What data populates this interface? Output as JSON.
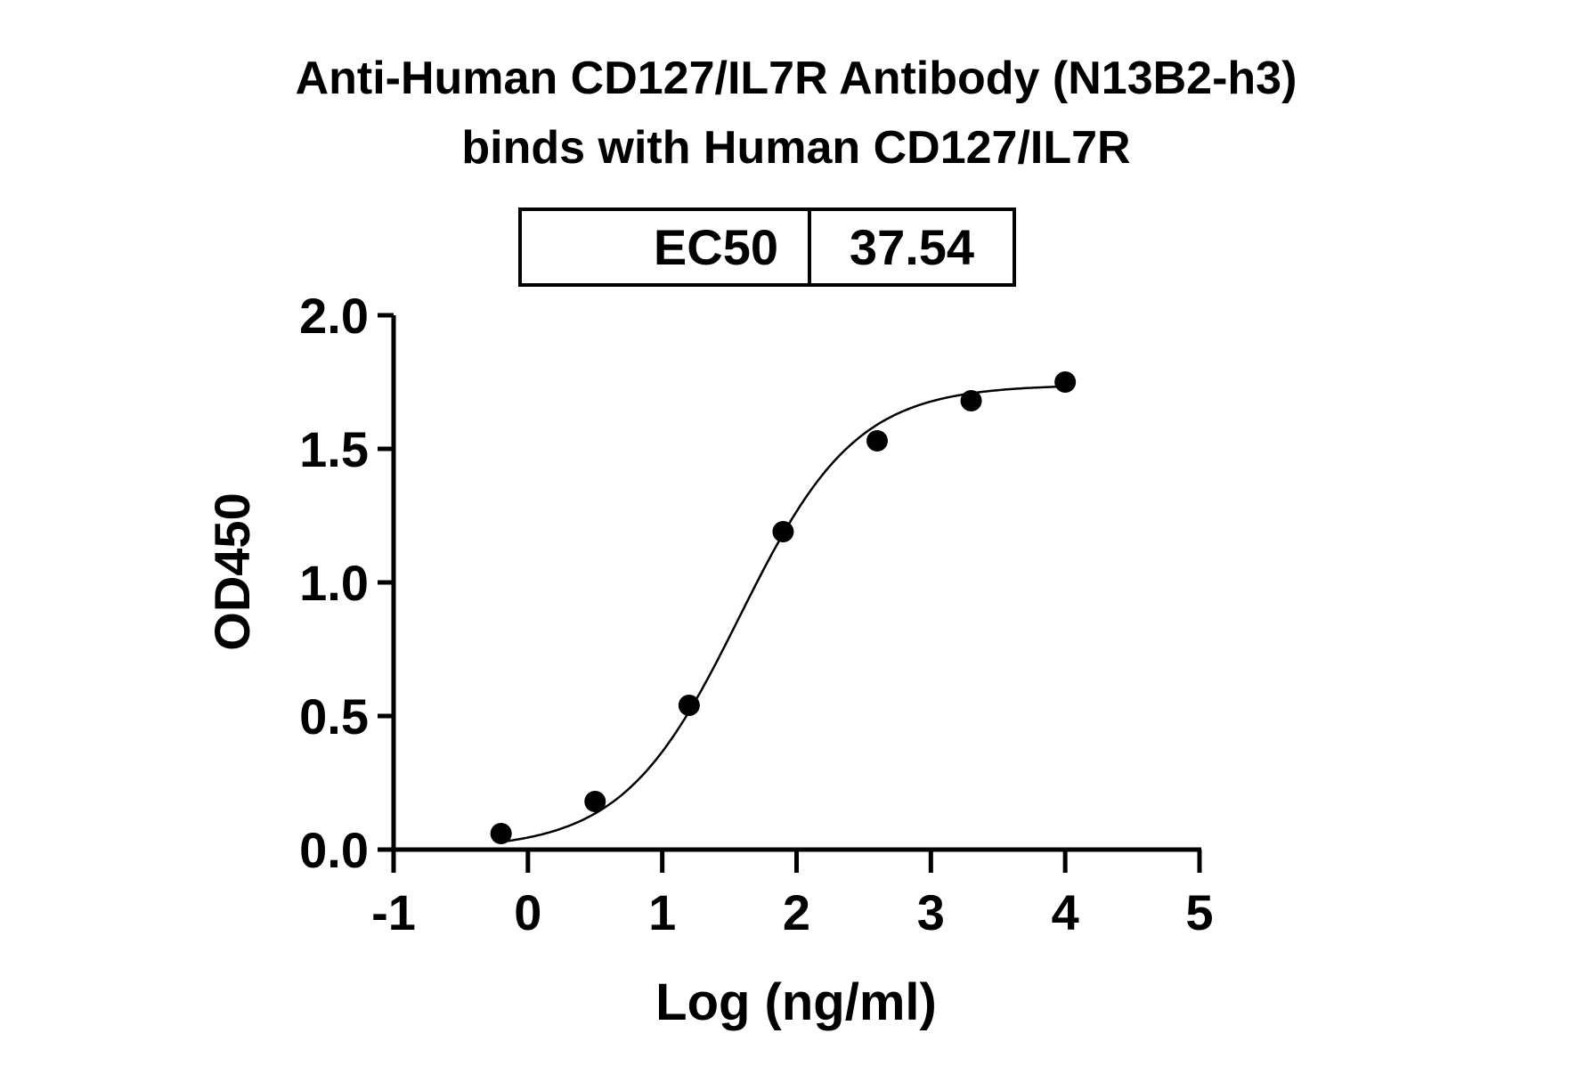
{
  "chart_data": {
    "type": "scatter",
    "title_lines": [
      "Anti-Human CD127/IL7R Antibody (N13B2-h3)",
      "binds with Human CD127/IL7R"
    ],
    "xlabel": "Log (ng/ml)",
    "ylabel": "OD450",
    "xlim": [
      -1,
      5
    ],
    "ylim": [
      0,
      2.0
    ],
    "xticks": [
      "-1",
      "0",
      "1",
      "2",
      "3",
      "4",
      "5"
    ],
    "yticks": [
      "0.0",
      "0.5",
      "1.0",
      "1.5",
      "2.0"
    ],
    "grid": false,
    "points": [
      {
        "x": -0.2,
        "y": 0.06
      },
      {
        "x": 0.5,
        "y": 0.18
      },
      {
        "x": 1.2,
        "y": 0.54
      },
      {
        "x": 1.9,
        "y": 1.19
      },
      {
        "x": 2.6,
        "y": 1.53
      },
      {
        "x": 3.3,
        "y": 1.68
      },
      {
        "x": 4.0,
        "y": 1.75
      }
    ],
    "fit": {
      "model": "4PL",
      "bottom": 0.0,
      "top": 1.74,
      "logEC50": 1.574,
      "hill": 1.0
    },
    "ec50_table": {
      "label": "EC50",
      "value": "37.54"
    },
    "colors": {
      "points": "#000000",
      "line": "#000000"
    }
  }
}
